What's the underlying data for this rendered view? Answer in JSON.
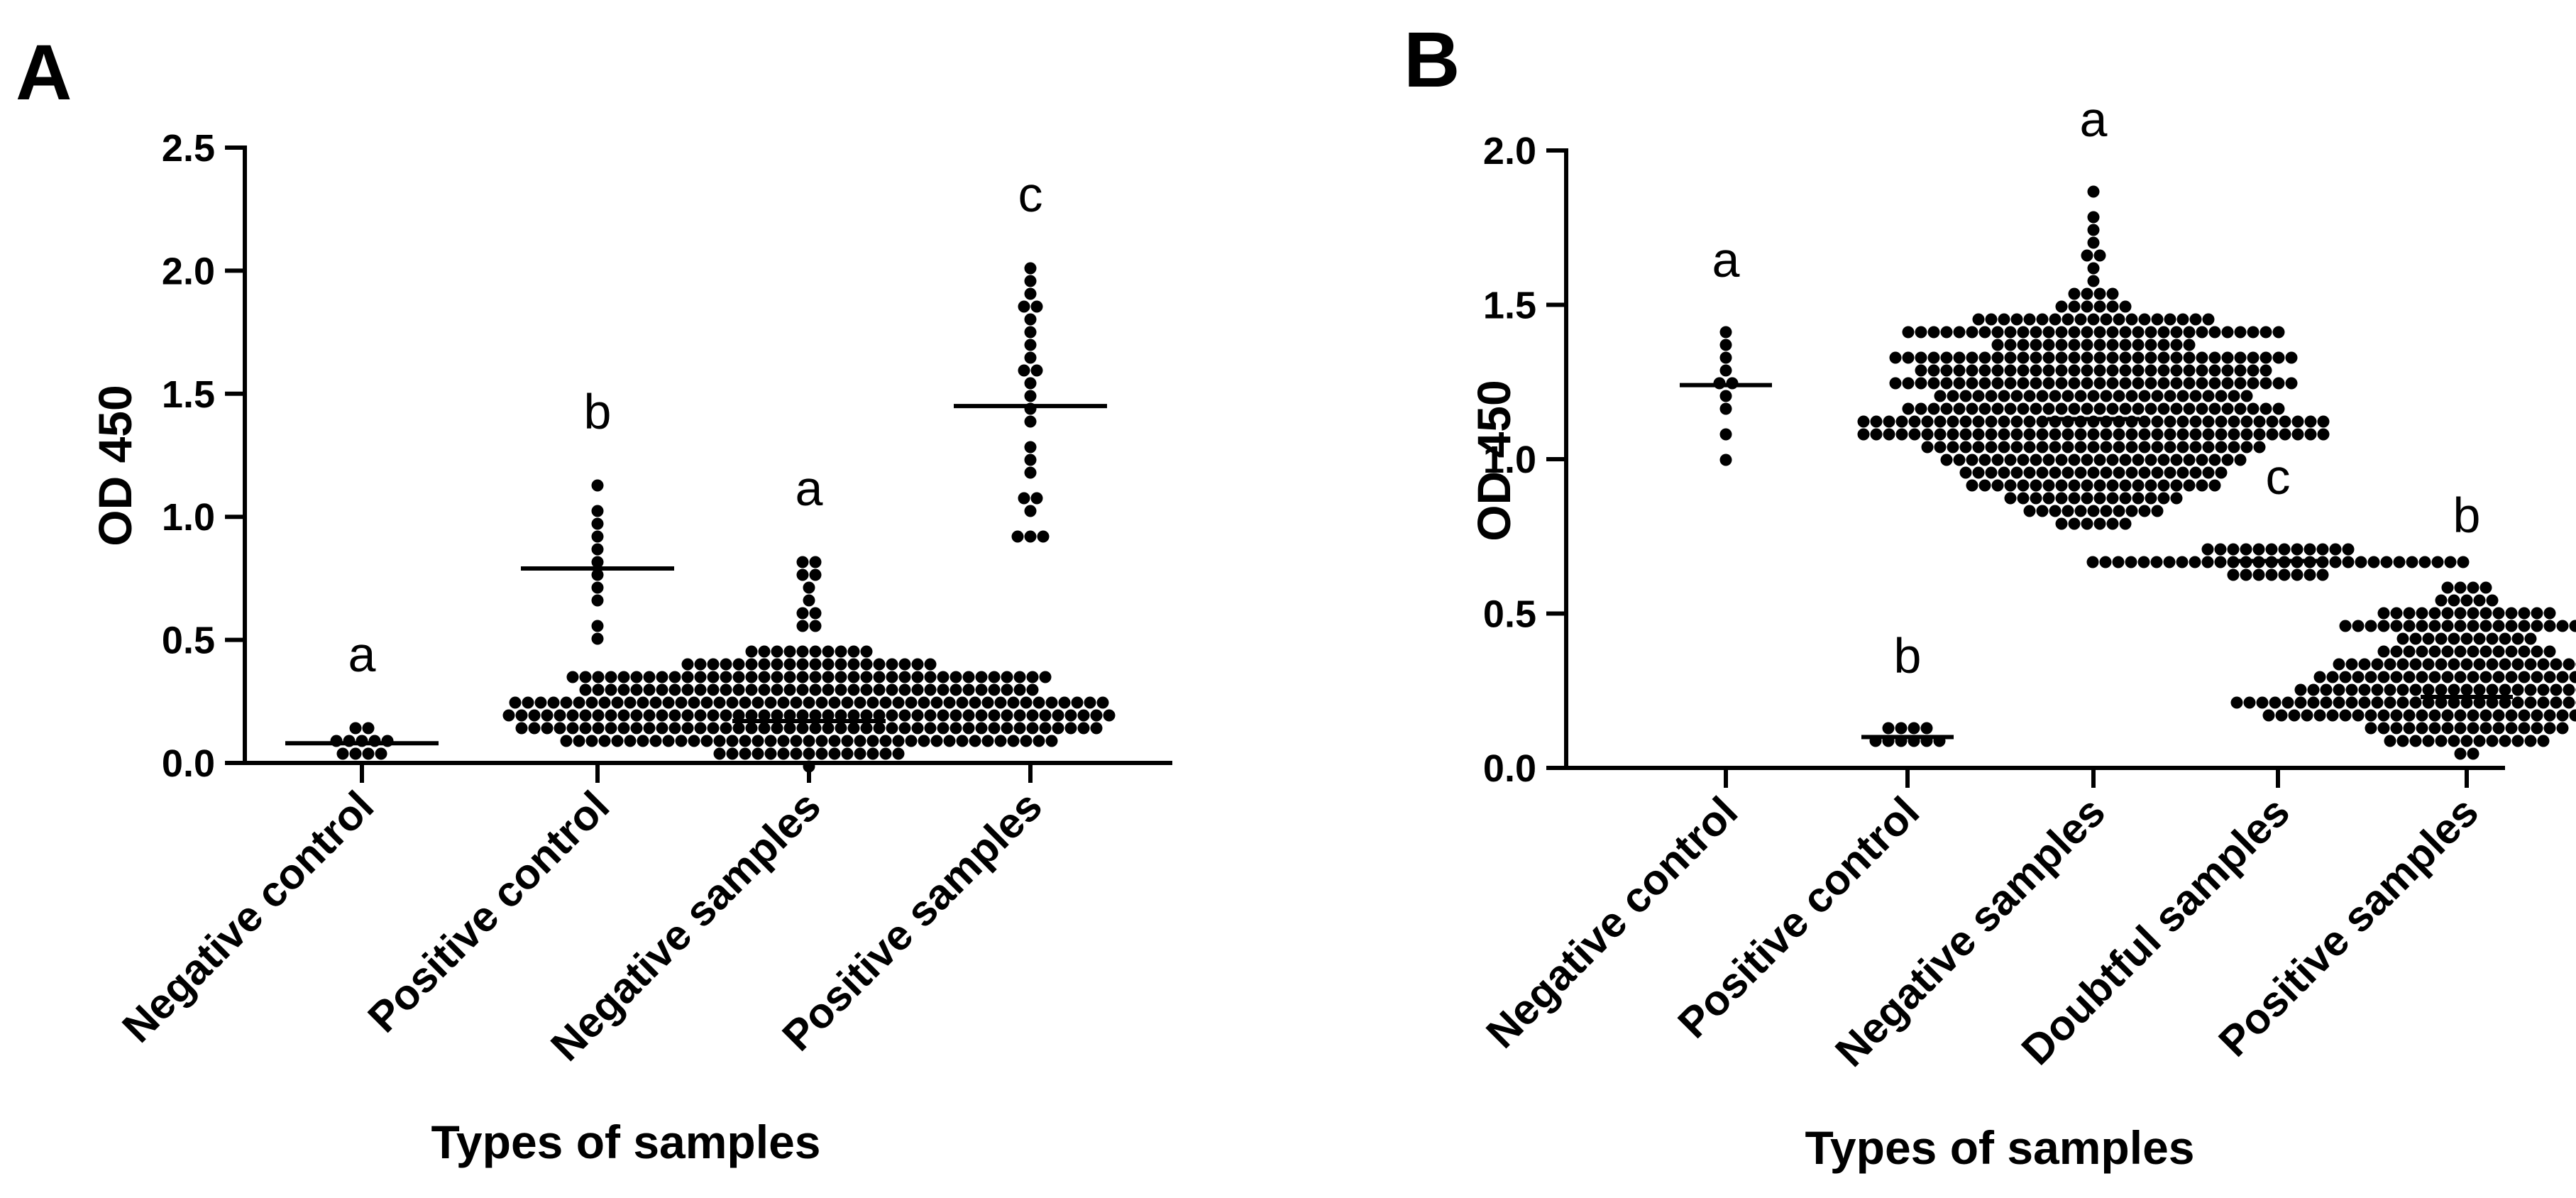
{
  "chart_data": [
    {
      "panel": "A",
      "type": "scatter",
      "title": "",
      "xlabel": "Types of samples",
      "ylabel": "OD 450",
      "ylim": [
        0,
        2.5
      ],
      "yticks": [
        "0.0",
        "0.5",
        "1.0",
        "1.5",
        "2.0",
        "2.5"
      ],
      "categories": [
        "Negative control",
        "Positive control",
        "Negative samples",
        "Positive samples"
      ],
      "significance": [
        "a",
        "b",
        "a",
        "c"
      ],
      "medians": [
        0.08,
        0.79,
        0.17,
        1.45
      ],
      "groups": [
        {
          "name": "Negative control",
          "values": [
            0.04,
            0.05,
            0.06,
            0.06,
            0.07,
            0.08,
            0.08,
            0.09,
            0.1,
            0.12,
            0.14
          ]
        },
        {
          "name": "Positive control",
          "values": [
            0.52,
            0.57,
            0.66,
            0.73,
            0.78,
            0.8,
            0.85,
            0.9,
            0.98,
            1.02,
            1.12
          ]
        },
        {
          "name": "Negative samples",
          "dist": {
            "n": 300,
            "min": 0.0,
            "max": 0.5,
            "mode": 0.15
          },
          "extra": [
            0.55,
            0.58,
            0.6,
            0.63,
            0.66,
            0.7,
            0.74,
            0.78,
            0.8,
            0.82
          ]
        },
        {
          "name": "Positive samples",
          "values": [
            0.9,
            0.92,
            0.94,
            1.01,
            1.05,
            1.1,
            1.18,
            1.25,
            1.3,
            1.38,
            1.45,
            1.5,
            1.52,
            1.58,
            1.62,
            1.66,
            1.7,
            1.74,
            1.78,
            1.83,
            1.88,
            1.93,
            1.97,
            2.02
          ]
        }
      ]
    },
    {
      "panel": "B",
      "type": "scatter",
      "title": "",
      "xlabel": "Types of samples",
      "ylabel": "OD 450",
      "ylim": [
        0,
        2.0
      ],
      "yticks": [
        "0.0",
        "0.5",
        "1.0",
        "1.5",
        "2.0"
      ],
      "categories": [
        "Negative control",
        "Positive control",
        "Negative samples",
        "Doubtful samples",
        "Positive samples"
      ],
      "significance": [
        "a",
        "b",
        "a",
        "c",
        "b"
      ],
      "medians": [
        1.24,
        0.1,
        1.13,
        0.67,
        0.23
      ],
      "groups": [
        {
          "name": "Negative control",
          "values": [
            0.99,
            1.1,
            1.18,
            1.2,
            1.23,
            1.25,
            1.28,
            1.32,
            1.36,
            1.4
          ]
        },
        {
          "name": "Positive control",
          "values": [
            0.08,
            0.09,
            0.09,
            0.1,
            0.1,
            0.1,
            0.11,
            0.11,
            0.12,
            0.13
          ]
        },
        {
          "name": "Negative samples",
          "dist": {
            "n": 420,
            "min": 0.74,
            "max": 1.6,
            "mode": 1.12
          },
          "extra": [
            1.62,
            1.65,
            1.68,
            1.7,
            1.75,
            1.8,
            1.88
          ]
        },
        {
          "name": "Doubtful samples",
          "dist": {
            "n": 50,
            "min": 0.61,
            "max": 0.73,
            "mode": 0.67
          },
          "extra": []
        },
        {
          "name": "Positive samples",
          "dist": {
            "n": 240,
            "min": 0.04,
            "max": 0.61,
            "mode": 0.2
          },
          "extra": []
        }
      ]
    }
  ]
}
